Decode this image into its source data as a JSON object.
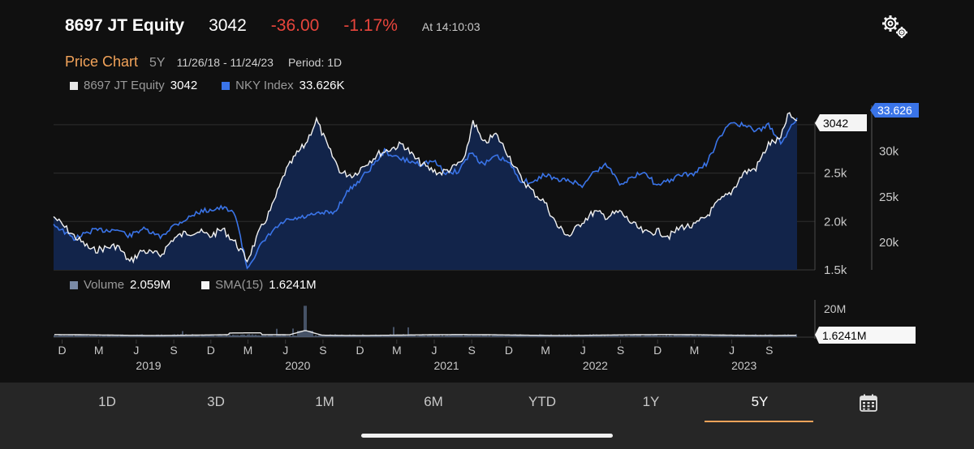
{
  "header": {
    "ticker": "8697 JT Equity",
    "price": "3042",
    "change": "-36.00",
    "change_pct": "-1.17%",
    "time": "At 14:10:03",
    "settings_icon": "gear-icon"
  },
  "subheader": {
    "title": "Price Chart",
    "range": "5Y",
    "dates": "11/26/18 - 11/24/23",
    "period": "Period: 1D"
  },
  "legend": {
    "equity_label": "8697 JT Equity",
    "equity_value": "3042",
    "index_label": "NKY Index",
    "index_value": "33.626K"
  },
  "volume_legend": {
    "volume_label": "Volume",
    "volume_value": "2.059M",
    "sma_label": "SMA(15)",
    "sma_value": "1.6241M"
  },
  "badges": {
    "equity_last": "3042",
    "index_last": "33.626",
    "sma_last": "1.6241M"
  },
  "colors": {
    "equity_line": "#f2f2f2",
    "index_line": "#3a74e8",
    "area_fill": "#12244a",
    "accent": "#f2a35a",
    "negative": "#e8453c",
    "volume_bar": "#5d6f8c"
  },
  "chart_data": [
    {
      "type": "line",
      "left_axis": {
        "ticks": [
          "1.5k",
          "2.0k",
          "2.5k"
        ],
        "ylim": [
          1500,
          3200
        ]
      },
      "right_axis": {
        "ticks": [
          "20k",
          "25k",
          "30k"
        ],
        "ylim": [
          17000,
          35000
        ]
      },
      "series": [
        {
          "name": "8697 JT Equity",
          "axis": "left",
          "x": [
            "2018-11-26",
            "2019-01-15",
            "2019-03-01",
            "2019-05-01",
            "2019-06-01",
            "2019-07-01",
            "2019-08-15",
            "2019-09-15",
            "2019-10-15",
            "2019-11-15",
            "2019-12-15",
            "2020-01-15",
            "2020-02-15",
            "2020-03-15",
            "2020-04-15",
            "2020-05-15",
            "2020-06-15",
            "2020-07-15",
            "2020-08-05",
            "2020-09-01",
            "2020-10-01",
            "2020-11-01",
            "2020-12-01",
            "2021-01-01",
            "2021-02-01",
            "2021-03-01",
            "2021-04-01",
            "2021-05-01",
            "2021-06-01",
            "2021-07-01",
            "2021-08-01",
            "2021-09-01",
            "2021-09-20",
            "2021-10-15",
            "2021-11-15",
            "2021-12-15",
            "2022-01-15",
            "2022-02-15",
            "2022-03-15",
            "2022-04-15",
            "2022-05-15",
            "2022-06-15",
            "2022-07-15",
            "2022-08-15",
            "2022-09-15",
            "2022-10-15",
            "2022-11-15",
            "2022-12-15",
            "2023-01-15",
            "2023-02-15",
            "2023-03-15",
            "2023-04-15",
            "2023-05-15",
            "2023-06-15",
            "2023-07-15",
            "2023-08-15",
            "2023-09-15",
            "2023-10-15",
            "2023-11-01",
            "2023-11-24"
          ],
          "values": [
            2050,
            1850,
            1700,
            1750,
            1580,
            1700,
            1650,
            1820,
            1880,
            1900,
            1850,
            1920,
            1780,
            1600,
            1900,
            2150,
            2500,
            2700,
            2800,
            3050,
            2750,
            2500,
            2480,
            2600,
            2700,
            2750,
            2800,
            2650,
            2550,
            2500,
            2550,
            2650,
            3050,
            2800,
            2900,
            2700,
            2450,
            2300,
            2200,
            1950,
            1850,
            2000,
            2100,
            2050,
            2100,
            1980,
            1880,
            1900,
            1850,
            1950,
            1950,
            2050,
            2200,
            2300,
            2500,
            2550,
            2800,
            2850,
            3100,
            3042
          ]
        },
        {
          "name": "NKY Index",
          "axis": "right",
          "x": [
            "2018-11-26",
            "2019-01-15",
            "2019-03-01",
            "2019-05-01",
            "2019-06-01",
            "2019-07-01",
            "2019-08-15",
            "2019-09-15",
            "2019-10-15",
            "2019-11-15",
            "2019-12-15",
            "2020-01-15",
            "2020-02-15",
            "2020-03-15",
            "2020-04-15",
            "2020-05-15",
            "2020-06-15",
            "2020-07-15",
            "2020-08-15",
            "2020-09-15",
            "2020-10-15",
            "2020-11-15",
            "2020-12-15",
            "2021-01-15",
            "2021-02-15",
            "2021-03-15",
            "2021-04-15",
            "2021-05-15",
            "2021-06-15",
            "2021-07-15",
            "2021-08-15",
            "2021-09-15",
            "2021-10-15",
            "2021-11-15",
            "2021-12-15",
            "2022-01-15",
            "2022-02-15",
            "2022-03-15",
            "2022-04-15",
            "2022-05-15",
            "2022-06-15",
            "2022-07-15",
            "2022-08-15",
            "2022-09-15",
            "2022-10-15",
            "2022-11-15",
            "2022-12-15",
            "2023-01-15",
            "2023-02-15",
            "2023-03-15",
            "2023-04-15",
            "2023-05-15",
            "2023-06-15",
            "2023-07-15",
            "2023-08-15",
            "2023-09-15",
            "2023-10-15",
            "2023-11-01",
            "2023-11-24"
          ],
          "values": [
            22000,
            20400,
            21300,
            21400,
            20700,
            21500,
            20600,
            21800,
            22500,
            23300,
            23600,
            23800,
            23100,
            17200,
            19500,
            21200,
            22300,
            22600,
            22900,
            23200,
            23300,
            25500,
            26800,
            28300,
            30000,
            29300,
            28900,
            28600,
            28900,
            27600,
            27800,
            29900,
            28500,
            29400,
            28800,
            26800,
            26500,
            27500,
            26800,
            26800,
            26200,
            27800,
            28500,
            26500,
            27000,
            27900,
            26100,
            26800,
            27400,
            27500,
            28600,
            31200,
            33200,
            32800,
            32200,
            32800,
            31000,
            32000,
            33626
          ]
        }
      ]
    },
    {
      "type": "bar",
      "y_axis": {
        "ticks": [
          "20M"
        ],
        "ylim": [
          0,
          25
        ]
      },
      "x_axis": {
        "month_ticks": [
          "D",
          "M",
          "J",
          "S",
          "D",
          "M",
          "J",
          "S",
          "D",
          "M",
          "J",
          "S",
          "D",
          "M",
          "J",
          "S",
          "D",
          "M",
          "J",
          "S"
        ],
        "year_ticks": [
          "2019",
          "2020",
          "2021",
          "2022",
          "2023"
        ]
      },
      "series": [
        {
          "name": "Volume",
          "unit": "M",
          "last": 2.059,
          "typical": 1.5,
          "peak": 22,
          "peak_date": "2020-08-05"
        },
        {
          "name": "SMA(15)",
          "unit": "M",
          "last": 1.6241
        }
      ]
    }
  ],
  "tabs": [
    {
      "label": "1D",
      "active": false
    },
    {
      "label": "3D",
      "active": false
    },
    {
      "label": "1M",
      "active": false
    },
    {
      "label": "6M",
      "active": false
    },
    {
      "label": "YTD",
      "active": false
    },
    {
      "label": "1Y",
      "active": false
    },
    {
      "label": "5Y",
      "active": true
    }
  ],
  "calendar_icon": "calendar-icon"
}
